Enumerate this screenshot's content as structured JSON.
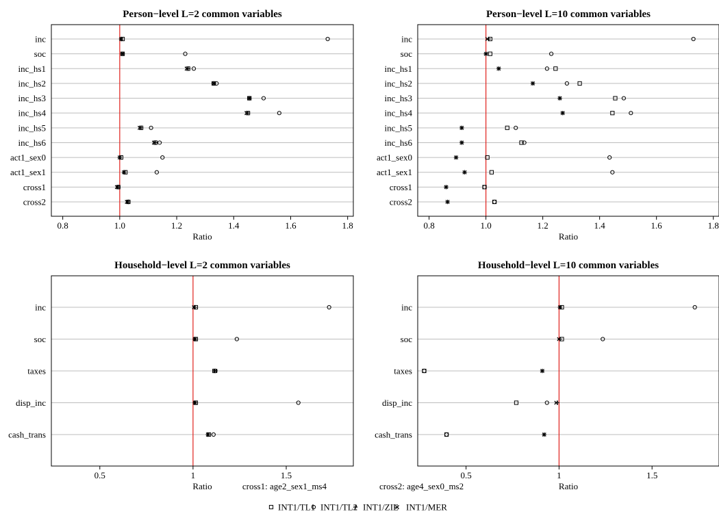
{
  "footnote": {
    "cross1": "cross1: age2_sex1_ms4",
    "cross2": "cross2: age4_sex0_ms2"
  },
  "legend": [
    {
      "name": "INT1/TL1",
      "marker": "square"
    },
    {
      "name": "INT1/TL2",
      "marker": "circle"
    },
    {
      "name": "INT1/ZIE",
      "marker": "plus"
    },
    {
      "name": "INT1/MER",
      "marker": "cross"
    }
  ],
  "colors": {
    "reference_line": "#e0201b",
    "grid": "#bdbdbd",
    "markers": "#000000"
  },
  "chart_data": [
    {
      "type": "scatter",
      "title": "Person−level L=2 common variables",
      "xlabel": "Ratio",
      "xlim": [
        0.76,
        1.82
      ],
      "xticks": [
        0.8,
        1.0,
        1.2,
        1.4,
        1.6,
        1.8
      ],
      "xtick_labels": [
        "0.8",
        "1.0",
        "1.2",
        "1.4",
        "1.6",
        "1.8"
      ],
      "reference_x": 1.0,
      "grid": "horizontal",
      "categories": [
        "inc",
        "soc",
        "inc_hs1",
        "inc_hs2",
        "inc_hs3",
        "inc_hs4",
        "inc_hs5",
        "inc_hs6",
        "act1_sex0",
        "act1_sex1",
        "cross1",
        "cross2"
      ],
      "series": [
        {
          "name": "INT1/TL1",
          "values": [
            1.01,
            1.01,
            1.24,
            1.33,
            1.455,
            1.45,
            1.075,
            1.125,
            1.005,
            1.02,
            0.995,
            1.03
          ]
        },
        {
          "name": "INT1/TL2",
          "values": [
            1.73,
            1.23,
            1.26,
            1.34,
            1.505,
            1.56,
            1.11,
            1.14,
            1.15,
            1.13,
            0.995,
            1.03
          ]
        },
        {
          "name": "INT1/ZIE",
          "values": [
            1.005,
            1.01,
            1.24,
            1.33,
            1.455,
            1.45,
            1.075,
            1.125,
            1.0,
            1.015,
            0.995,
            1.03
          ]
        },
        {
          "name": "INT1/MER",
          "values": [
            1.005,
            1.01,
            1.235,
            1.33,
            1.455,
            1.445,
            1.07,
            1.12,
            1.0,
            1.015,
            0.99,
            1.025
          ]
        }
      ]
    },
    {
      "type": "scatter",
      "title": "Person−level L=10 common variables",
      "xlabel": "Ratio",
      "xlim": [
        0.76,
        1.82
      ],
      "xticks": [
        0.8,
        1.0,
        1.2,
        1.4,
        1.6,
        1.8
      ],
      "xtick_labels": [
        "0.8",
        "1.0",
        "1.2",
        "1.4",
        "1.6",
        "1.8"
      ],
      "reference_x": 1.0,
      "grid": "horizontal",
      "categories": [
        "inc",
        "soc",
        "inc_hs1",
        "inc_hs2",
        "inc_hs3",
        "inc_hs4",
        "inc_hs5",
        "inc_hs6",
        "act1_sex0",
        "act1_sex1",
        "cross1",
        "cross2"
      ],
      "series": [
        {
          "name": "INT1/TL1",
          "values": [
            1.015,
            1.015,
            1.245,
            1.33,
            1.455,
            1.445,
            1.075,
            1.125,
            1.005,
            1.02,
            0.995,
            1.03
          ]
        },
        {
          "name": "INT1/TL2",
          "values": [
            1.73,
            1.23,
            1.215,
            1.285,
            1.485,
            1.51,
            1.105,
            1.135,
            1.435,
            1.445,
            0.995,
            1.03
          ]
        },
        {
          "name": "INT1/ZIE",
          "values": [
            1.01,
            1.0,
            1.045,
            1.165,
            1.26,
            1.27,
            0.915,
            0.915,
            0.895,
            0.925,
            0.86,
            0.865
          ]
        },
        {
          "name": "INT1/MER",
          "values": [
            1.005,
            1.0,
            1.045,
            1.165,
            1.26,
            1.27,
            0.915,
            0.915,
            0.895,
            0.925,
            0.86,
            0.865
          ]
        }
      ]
    },
    {
      "type": "scatter",
      "title": "Household−level L=2 common variables",
      "xlabel": "Ratio",
      "xlim": [
        0.24,
        1.86
      ],
      "xticks": [
        0.5,
        1.0,
        1.5
      ],
      "xtick_labels": [
        "0.5",
        "1",
        "1.5"
      ],
      "reference_x": 1.0,
      "grid": "horizontal",
      "categories": [
        "inc",
        "soc",
        "taxes",
        "disp_inc",
        "cash_trans"
      ],
      "series": [
        {
          "name": "INT1/TL1",
          "values": [
            1.015,
            1.015,
            1.115,
            1.015,
            1.085
          ]
        },
        {
          "name": "INT1/TL2",
          "values": [
            1.73,
            1.235,
            1.12,
            1.565,
            1.11
          ]
        },
        {
          "name": "INT1/ZIE",
          "values": [
            1.01,
            1.01,
            1.115,
            1.01,
            1.08
          ]
        },
        {
          "name": "INT1/MER",
          "values": [
            1.005,
            1.01,
            1.12,
            1.01,
            1.08
          ]
        }
      ]
    },
    {
      "type": "scatter",
      "title": "Household−level L=10 common variables",
      "xlabel": "Ratio",
      "xlim": [
        0.24,
        1.86
      ],
      "xticks": [
        0.5,
        1.0,
        1.5
      ],
      "xtick_labels": [
        "0.5",
        "1",
        "1.5"
      ],
      "reference_x": 1.0,
      "grid": "horizontal",
      "categories": [
        "inc",
        "soc",
        "taxes",
        "disp_inc",
        "cash_trans"
      ],
      "series": [
        {
          "name": "INT1/TL1",
          "values": [
            1.015,
            1.015,
            0.275,
            0.77,
            0.395
          ]
        },
        {
          "name": "INT1/TL2",
          "values": [
            1.73,
            1.235,
            0.275,
            0.935,
            0.395
          ]
        },
        {
          "name": "INT1/ZIE",
          "values": [
            1.005,
            1.005,
            0.91,
            0.99,
            0.92
          ]
        },
        {
          "name": "INT1/MER",
          "values": [
            1.005,
            1.0,
            0.91,
            0.985,
            0.92
          ]
        }
      ]
    }
  ]
}
